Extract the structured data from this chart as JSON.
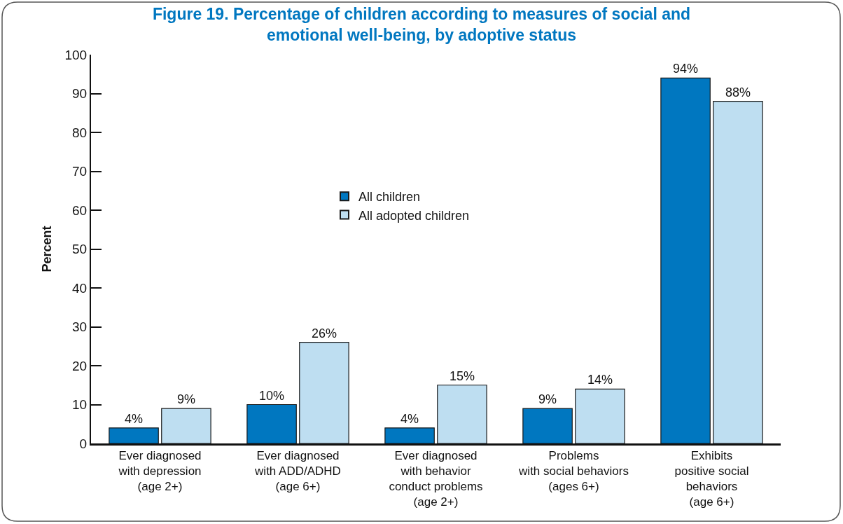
{
  "chart_data": {
    "type": "bar",
    "title": "Figure 19. Percentage of children according to measures of social and\nemotional well-being, by adoptive status",
    "ylabel": "Percent",
    "categories": [
      "Ever diagnosed\nwith depression\n(age 2+)",
      "Ever diagnosed\nwith ADD/ADHD\n(age 6+)",
      "Ever diagnosed\nwith behavior\nconduct problems\n(age 2+)",
      "Problems\nwith social behaviors\n(ages 6+)",
      "Exhibits\npositive social\nbehaviors\n(age 6+)"
    ],
    "series": [
      {
        "name": "All children",
        "color": "#0077c0",
        "values": [
          4,
          10,
          4,
          9,
          94
        ],
        "value_labels": [
          "4%",
          "10%",
          "4%",
          "9%",
          "94%"
        ]
      },
      {
        "name": "All adopted children",
        "color": "#bedef1",
        "values": [
          9,
          26,
          15,
          14,
          88
        ],
        "value_labels": [
          "9%",
          "26%",
          "15%",
          "14%",
          "88%"
        ]
      }
    ],
    "ylim": [
      0,
      100
    ],
    "yticks": [
      0,
      10,
      20,
      30,
      40,
      50,
      60,
      70,
      80,
      90,
      100
    ],
    "legend": "top"
  }
}
